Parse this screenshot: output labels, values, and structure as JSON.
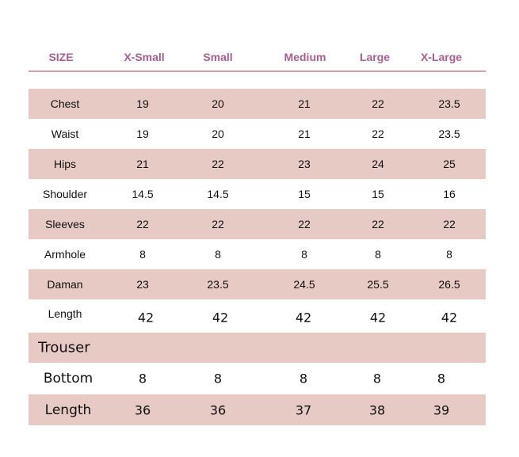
{
  "header": [
    "SIZE",
    "X-Small",
    "Small",
    "Medium",
    "Large",
    "X-Large"
  ],
  "colors": {
    "header_text": "#a65f8e",
    "band": "#e6cac3",
    "rule": "#cfa3ab"
  },
  "top_rows": [
    {
      "label": "Chest",
      "values": [
        "19",
        "20",
        "21",
        "22",
        "23.5"
      ]
    },
    {
      "label": "Waist",
      "values": [
        "19",
        "20",
        "21",
        "22",
        "23.5"
      ]
    },
    {
      "label": "Hips",
      "values": [
        "21",
        "22",
        "23",
        "24",
        "25"
      ]
    },
    {
      "label": "Shoulder",
      "values": [
        "14.5",
        "14.5",
        "15",
        "15",
        "16"
      ]
    },
    {
      "label": "Sleeves",
      "values": [
        "22",
        "22",
        "22",
        "22",
        "22"
      ]
    },
    {
      "label": "Armhole",
      "values": [
        "8",
        "8",
        "8",
        "8",
        "8"
      ]
    },
    {
      "label": "Daman",
      "values": [
        "23",
        "23.5",
        "24.5",
        "25.5",
        "26.5"
      ]
    },
    {
      "label": "Length",
      "values": [
        "42",
        "42",
        "42",
        "42",
        "42"
      ]
    }
  ],
  "trouser": {
    "title": "Trouser",
    "rows": [
      {
        "label": "Bottom",
        "values": [
          "8",
          "8",
          "8",
          "8",
          "8"
        ]
      },
      {
        "label": "Length",
        "values": [
          "36",
          "36",
          "37",
          "38",
          "39"
        ]
      }
    ]
  }
}
